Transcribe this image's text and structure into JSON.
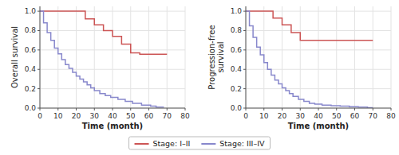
{
  "chart_data": [
    {
      "type": "step",
      "xlabel": "Time (month)",
      "ylabel": "Overall survival",
      "xlim": [
        0,
        80
      ],
      "ylim": [
        0,
        1.05
      ],
      "xticks": [
        0,
        10,
        20,
        30,
        40,
        50,
        60,
        70,
        80
      ],
      "yticks": [
        {
          "value": 0,
          "label": "0.0"
        },
        0.2,
        0.4,
        0.6,
        0.8,
        {
          "value": 1.0,
          "label": "1.0"
        }
      ],
      "grid": true,
      "legend": "bottom",
      "series": [
        {
          "name": "Stage: I–II",
          "color": "#cc5555",
          "x": [
            0,
            20,
            25,
            30,
            35,
            40,
            45,
            50,
            55,
            70
          ],
          "values": [
            1.0,
            1.0,
            0.92,
            0.86,
            0.8,
            0.74,
            0.66,
            0.57,
            0.555,
            0.555
          ]
        },
        {
          "name": "Stage: III–IV",
          "color": "#8888cc",
          "x": [
            0,
            2,
            4,
            6,
            8,
            10,
            12,
            14,
            16,
            18,
            20,
            22,
            24,
            26,
            28,
            30,
            33,
            36,
            39,
            43,
            47,
            51,
            56,
            61,
            64,
            68
          ],
          "values": [
            1.0,
            0.88,
            0.78,
            0.7,
            0.62,
            0.56,
            0.5,
            0.45,
            0.41,
            0.37,
            0.33,
            0.3,
            0.27,
            0.24,
            0.21,
            0.18,
            0.15,
            0.13,
            0.11,
            0.09,
            0.07,
            0.05,
            0.03,
            0.02,
            0.01,
            0.005
          ]
        }
      ]
    },
    {
      "type": "step",
      "xlabel": "Time (month)",
      "ylabel": "Progression-free\nsurvival",
      "xlim": [
        0,
        80
      ],
      "ylim": [
        0,
        1.05
      ],
      "xticks": [
        0,
        10,
        20,
        30,
        40,
        50,
        60,
        70,
        80
      ],
      "yticks": [
        {
          "value": 0,
          "label": "0.0"
        },
        0.2,
        0.4,
        0.6,
        0.8,
        {
          "value": 1.0,
          "label": "1.0"
        }
      ],
      "grid": true,
      "series": [
        {
          "color": "#cc5555",
          "x": [
            0,
            10,
            15,
            20,
            25,
            30,
            70
          ],
          "values": [
            1.0,
            1.0,
            0.93,
            0.86,
            0.78,
            0.7,
            0.7
          ]
        },
        {
          "color": "#8888cc",
          "x": [
            0,
            2,
            4,
            6,
            8,
            10,
            12,
            14,
            16,
            18,
            20,
            22,
            24,
            26,
            29,
            32,
            35,
            38,
            42,
            47,
            52,
            57,
            62,
            67,
            70
          ],
          "values": [
            1.0,
            0.85,
            0.73,
            0.63,
            0.55,
            0.47,
            0.4,
            0.34,
            0.29,
            0.25,
            0.21,
            0.18,
            0.15,
            0.12,
            0.09,
            0.07,
            0.05,
            0.04,
            0.03,
            0.025,
            0.02,
            0.015,
            0.01,
            0.005,
            0.005
          ]
        }
      ]
    }
  ]
}
